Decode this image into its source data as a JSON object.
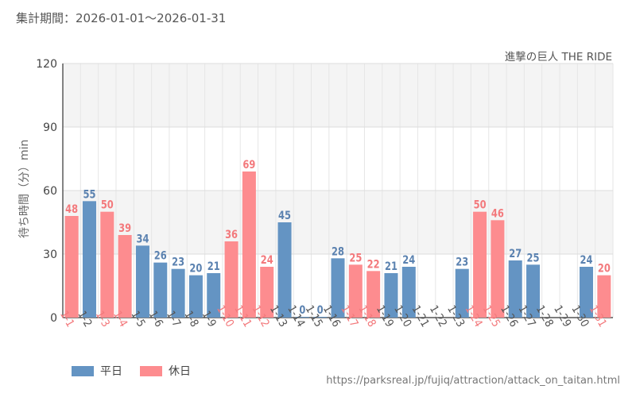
{
  "header": {
    "period": "集計期間：2026-01-01～2026-01-31",
    "subtitle": "進撃の巨人 THE RIDE"
  },
  "axis": {
    "ylabel": "待ち時間（分）min"
  },
  "legend": {
    "weekday": "平日",
    "holiday": "休日"
  },
  "source": "https://parksreal.jp/fujiq/attraction/attack_on_taitan.html",
  "colors": {
    "weekday": "#6494c3",
    "holiday": "#fd8c8f",
    "weekday_text": "#5b82b0",
    "holiday_text": "#f3797c"
  },
  "chart_data": {
    "type": "bar",
    "title": "進撃の巨人 THE RIDE",
    "xlabel": "",
    "ylabel": "待ち時間（分）min",
    "ylim": [
      0,
      120
    ],
    "yticks": [
      0,
      30,
      60,
      90,
      120
    ],
    "categories": [
      "1-1",
      "1-2",
      "1-3",
      "1-4",
      "1-5",
      "1-6",
      "1-7",
      "1-8",
      "1-9",
      "1-10",
      "1-11",
      "1-12",
      "1-13",
      "1-14",
      "1-15",
      "1-16",
      "1-17",
      "1-18",
      "1-19",
      "1-20",
      "1-21",
      "1-22",
      "1-23",
      "1-24",
      "1-25",
      "1-26",
      "1-27",
      "1-28",
      "1-29",
      "1-30",
      "1-31"
    ],
    "values": [
      48,
      55,
      50,
      39,
      34,
      26,
      23,
      20,
      21,
      36,
      69,
      24,
      45,
      0,
      0,
      28,
      25,
      22,
      21,
      24,
      null,
      null,
      23,
      50,
      46,
      27,
      25,
      null,
      null,
      24,
      20
    ],
    "day_type": [
      "holiday",
      "weekday",
      "holiday",
      "holiday",
      "weekday",
      "weekday",
      "weekday",
      "weekday",
      "weekday",
      "holiday",
      "holiday",
      "holiday",
      "weekday",
      "weekday",
      "weekday",
      "weekday",
      "holiday",
      "holiday",
      "weekday",
      "weekday",
      "weekday",
      "weekday",
      "weekday",
      "holiday",
      "holiday",
      "weekday",
      "weekday",
      "weekday",
      "weekday",
      "weekday",
      "holiday"
    ],
    "series": [
      {
        "name": "平日"
      },
      {
        "name": "休日"
      }
    ]
  }
}
